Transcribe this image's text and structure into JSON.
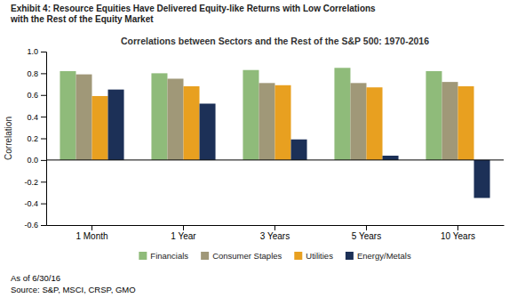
{
  "chart_data": {
    "type": "bar",
    "title": [
      "Exhibit 4: Resource Equities Have Delivered Equity-like Returns with Low Correlations",
      "with the Rest of the Equity Market"
    ],
    "subtitle": "Correlations between Sectors and the Rest of the S&P 500: 1970-2016",
    "ylabel": "Correlation",
    "annotations": [
      "As of 6/30/16",
      "Source: S&P, MSCI, CRSP, GMO"
    ],
    "categories": [
      "1 Month",
      "1 Year",
      "3 Years",
      "5 Years",
      "10 Years"
    ],
    "series": [
      {
        "name": "Financials",
        "color": "#8fbb7a",
        "values": [
          0.82,
          0.8,
          0.83,
          0.85,
          0.82
        ]
      },
      {
        "name": "Consumer Staples",
        "color": "#a09878",
        "values": [
          0.79,
          0.75,
          0.71,
          0.71,
          0.72
        ]
      },
      {
        "name": "Utilities",
        "color": "#e8a020",
        "values": [
          0.59,
          0.68,
          0.69,
          0.67,
          0.68
        ]
      },
      {
        "name": "Energy/Metals",
        "color": "#1c3057",
        "values": [
          0.65,
          0.52,
          0.19,
          0.04,
          -0.35
        ]
      }
    ],
    "ylim": [
      -0.6,
      1.0
    ],
    "yticks": [
      -0.6,
      -0.4,
      -0.2,
      {
        "value": 0,
        "label": "0.0"
      },
      0.2,
      0.4,
      0.6,
      0.8,
      {
        "value": 1,
        "label": "1.0"
      }
    ],
    "grid": false,
    "legend": "bottom"
  }
}
